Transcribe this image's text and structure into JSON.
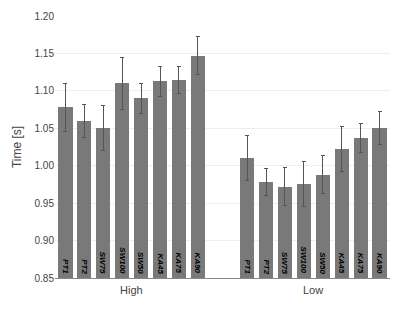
{
  "chart_data": {
    "type": "bar",
    "categories": [
      "PT1",
      "PT2",
      "SW75",
      "SW100",
      "SW50",
      "KA45",
      "KA75",
      "KA90"
    ],
    "series": [
      {
        "name": "High",
        "color": "#797979",
        "values": [
          1.078,
          1.06,
          1.05,
          1.11,
          1.09,
          1.113,
          1.115,
          1.147
        ],
        "errors": [
          0.032,
          0.022,
          0.03,
          0.035,
          0.02,
          0.02,
          0.018,
          0.025
        ]
      },
      {
        "name": "Low",
        "color": "#797979",
        "values": [
          1.01,
          0.978,
          0.972,
          0.975,
          0.988,
          1.022,
          1.037,
          1.05
        ],
        "errors": [
          0.03,
          0.018,
          0.025,
          0.03,
          0.025,
          0.03,
          0.02,
          0.022
        ]
      }
    ],
    "y_label": "Time [s]",
    "ylim": [
      0.85,
      1.2
    ],
    "yticks": [
      0.85,
      0.9,
      0.95,
      1.0,
      1.05,
      1.1,
      1.15,
      1.2
    ],
    "grid": true
  }
}
